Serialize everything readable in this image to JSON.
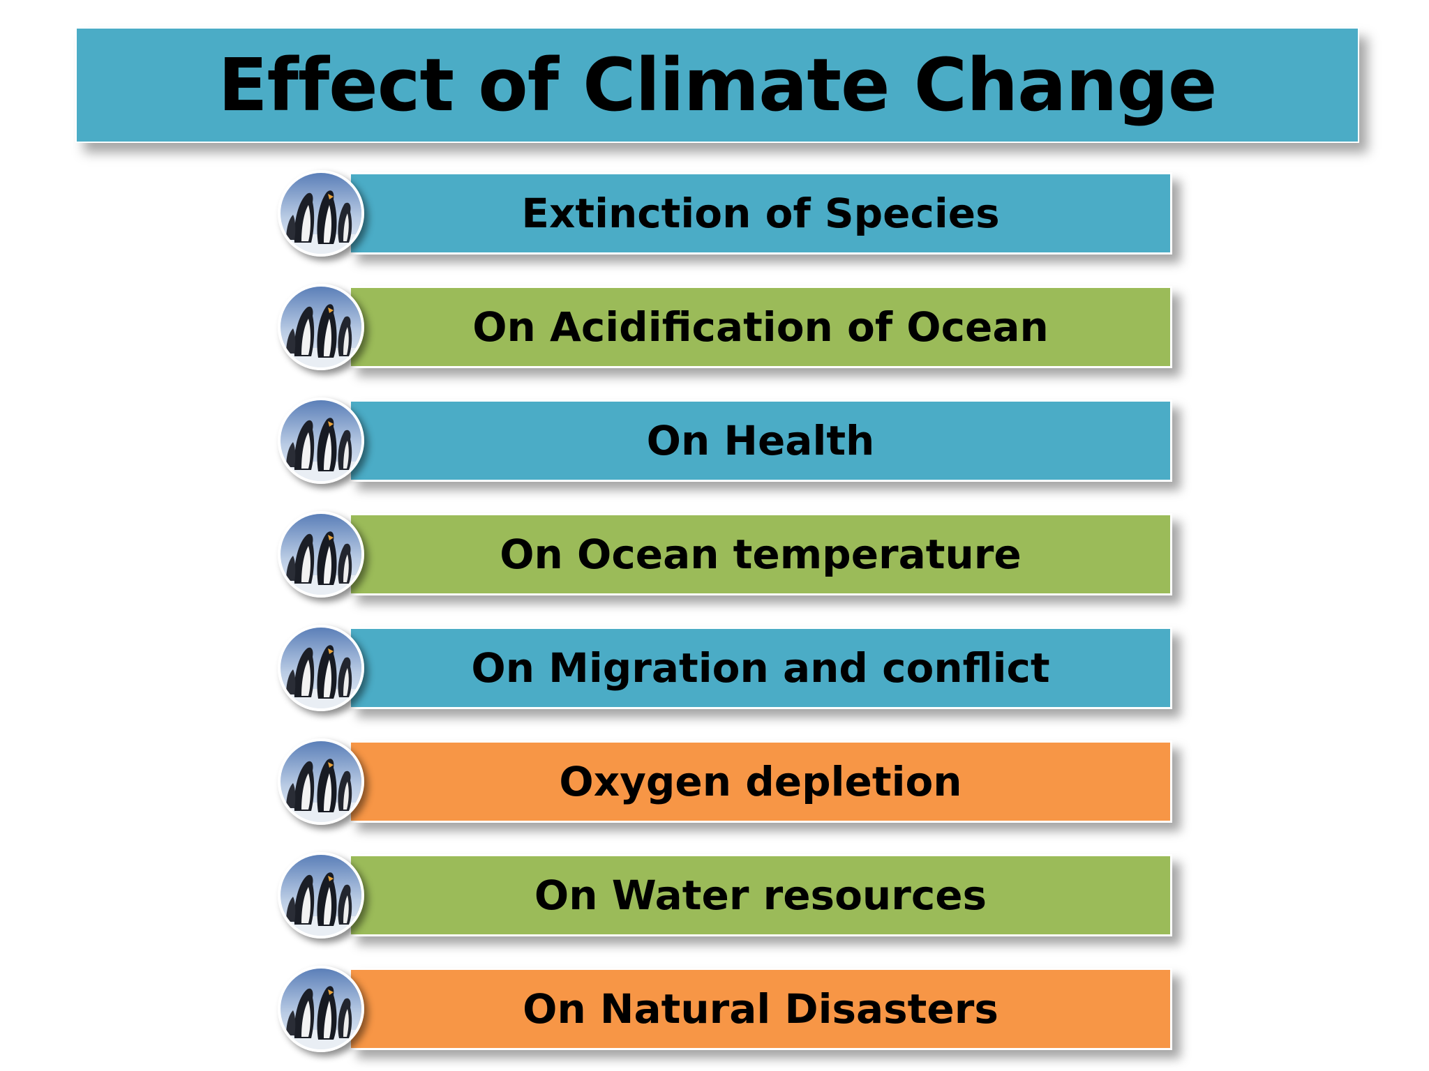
{
  "title": "Effect of Climate Change",
  "items": [
    {
      "label": "Extinction of Species",
      "color": "#4bacc6"
    },
    {
      "label": "On Acidification of Ocean",
      "color": "#9bbb59"
    },
    {
      "label": "On Health",
      "color": "#4bacc6"
    },
    {
      "label": "On Ocean temperature",
      "color": "#9bbb59"
    },
    {
      "label": "On Migration and conflict",
      "color": "#4bacc6"
    },
    {
      "label": "Oxygen depletion",
      "color": "#f79646"
    },
    {
      "label": "On Water resources",
      "color": "#9bbb59"
    },
    {
      "label": "On Natural Disasters",
      "color": "#f79646"
    }
  ],
  "badge_icon": "penguins-photo-icon"
}
